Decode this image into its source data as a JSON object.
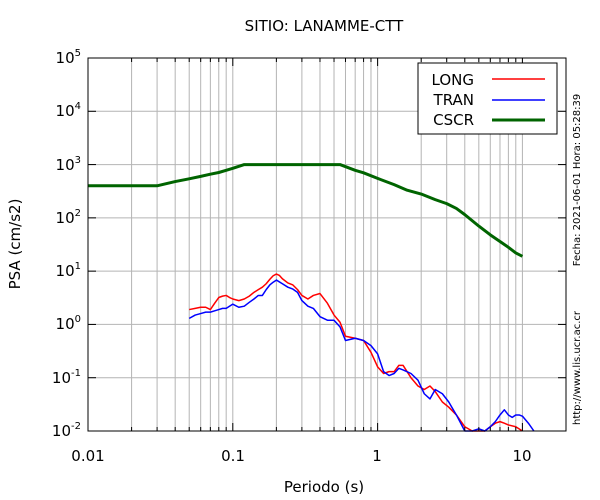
{
  "chart_data": {
    "type": "line",
    "title": "SITIO: LANAMME-CTT",
    "xlabel": "Periodo (s)",
    "ylabel": "PSA (cm/s2)",
    "xscale": "log",
    "yscale": "log",
    "xlim": [
      0.01,
      20
    ],
    "ylim": [
      0.01,
      100000
    ],
    "grid": true,
    "legend_position": "top-right",
    "x_tick_labels": [
      "0.01",
      "0.1",
      "1",
      "10"
    ],
    "y_tick_labels": [
      {
        "base": "10",
        "exp": "5"
      },
      {
        "base": "10",
        "exp": "4"
      },
      {
        "base": "10",
        "exp": "3"
      },
      {
        "base": "10",
        "exp": "2"
      },
      {
        "base": "10",
        "exp": "1"
      },
      {
        "base": "10",
        "exp": "0"
      },
      {
        "base": "10",
        "exp": "-1"
      },
      {
        "base": "10",
        "exp": "-2"
      }
    ],
    "side_text": "Fecha: 2021-06-01  Hora: 05:28:39",
    "side_url": "http://www.lis.ucr.ac.cr",
    "series": [
      {
        "name": "LONG",
        "color": "#ff0000",
        "x": [
          0.05,
          0.055,
          0.06,
          0.065,
          0.07,
          0.075,
          0.08,
          0.085,
          0.09,
          0.095,
          0.1,
          0.11,
          0.12,
          0.13,
          0.14,
          0.15,
          0.16,
          0.17,
          0.18,
          0.19,
          0.2,
          0.21,
          0.22,
          0.24,
          0.26,
          0.28,
          0.3,
          0.33,
          0.36,
          0.4,
          0.45,
          0.5,
          0.55,
          0.6,
          0.7,
          0.8,
          0.9,
          1.0,
          1.1,
          1.2,
          1.3,
          1.4,
          1.5,
          1.7,
          1.9,
          2.1,
          2.3,
          2.5,
          2.8,
          3.1,
          3.5,
          4.0,
          4.5,
          5.0,
          5.5,
          6.0,
          6.5,
          7.0,
          7.5,
          8.0,
          9.0,
          10.0
        ],
        "y": [
          1.9,
          2.0,
          2.1,
          2.1,
          1.9,
          2.5,
          3.2,
          3.4,
          3.5,
          3.2,
          3.0,
          2.8,
          3.0,
          3.4,
          4.0,
          4.5,
          5.0,
          5.8,
          7.0,
          8.2,
          8.8,
          8.3,
          7.2,
          6.0,
          5.5,
          4.5,
          3.5,
          3.0,
          3.5,
          3.8,
          2.5,
          1.5,
          1.1,
          0.6,
          0.55,
          0.5,
          0.3,
          0.16,
          0.12,
          0.13,
          0.13,
          0.17,
          0.17,
          0.1,
          0.07,
          0.06,
          0.07,
          0.055,
          0.035,
          0.028,
          0.02,
          0.012,
          0.01,
          0.01,
          0.01,
          0.012,
          0.014,
          0.015,
          0.014,
          0.013,
          0.012,
          0.01
        ]
      },
      {
        "name": "TRAN",
        "color": "#0000ff",
        "x": [
          0.05,
          0.055,
          0.06,
          0.065,
          0.07,
          0.075,
          0.08,
          0.085,
          0.09,
          0.1,
          0.11,
          0.12,
          0.13,
          0.14,
          0.15,
          0.16,
          0.17,
          0.18,
          0.19,
          0.2,
          0.22,
          0.24,
          0.26,
          0.28,
          0.3,
          0.33,
          0.36,
          0.4,
          0.45,
          0.5,
          0.55,
          0.6,
          0.7,
          0.8,
          0.9,
          1.0,
          1.1,
          1.2,
          1.3,
          1.4,
          1.5,
          1.7,
          1.9,
          2.1,
          2.3,
          2.5,
          2.8,
          3.1,
          3.5,
          4.0,
          4.5,
          5.0,
          5.5,
          6.0,
          6.5,
          7.0,
          7.5,
          8.0,
          8.5,
          9.0,
          9.5,
          10.0,
          11.0,
          12.0
        ],
        "y": [
          1.3,
          1.5,
          1.6,
          1.7,
          1.7,
          1.8,
          1.9,
          2.0,
          2.0,
          2.4,
          2.1,
          2.2,
          2.6,
          3.0,
          3.5,
          3.5,
          4.5,
          5.5,
          6.2,
          6.8,
          5.8,
          5.0,
          4.6,
          4.0,
          2.8,
          2.2,
          2.0,
          1.4,
          1.2,
          1.2,
          0.9,
          0.5,
          0.55,
          0.5,
          0.4,
          0.28,
          0.13,
          0.11,
          0.12,
          0.15,
          0.14,
          0.12,
          0.09,
          0.05,
          0.04,
          0.06,
          0.05,
          0.035,
          0.02,
          0.01,
          0.009,
          0.011,
          0.01,
          0.012,
          0.015,
          0.02,
          0.025,
          0.02,
          0.018,
          0.02,
          0.02,
          0.019,
          0.014,
          0.01
        ]
      },
      {
        "name": "CSCR",
        "color": "#006400",
        "x": [
          0.01,
          0.03,
          0.04,
          0.05,
          0.06,
          0.07,
          0.08,
          0.09,
          0.1,
          0.12,
          0.15,
          0.2,
          0.3,
          0.4,
          0.55,
          0.7,
          0.8,
          1.0,
          1.3,
          1.6,
          2.0,
          2.5,
          3.0,
          3.5,
          4.0,
          5.0,
          6.0,
          7.0,
          8.0,
          9.0,
          10.0
        ],
        "y": [
          400,
          400,
          480,
          540,
          600,
          660,
          710,
          780,
          850,
          1000,
          1000,
          1000,
          1000,
          1000,
          1000,
          780,
          700,
          550,
          420,
          330,
          280,
          220,
          185,
          150,
          115,
          70,
          48,
          36,
          28,
          22,
          19
        ]
      }
    ]
  }
}
